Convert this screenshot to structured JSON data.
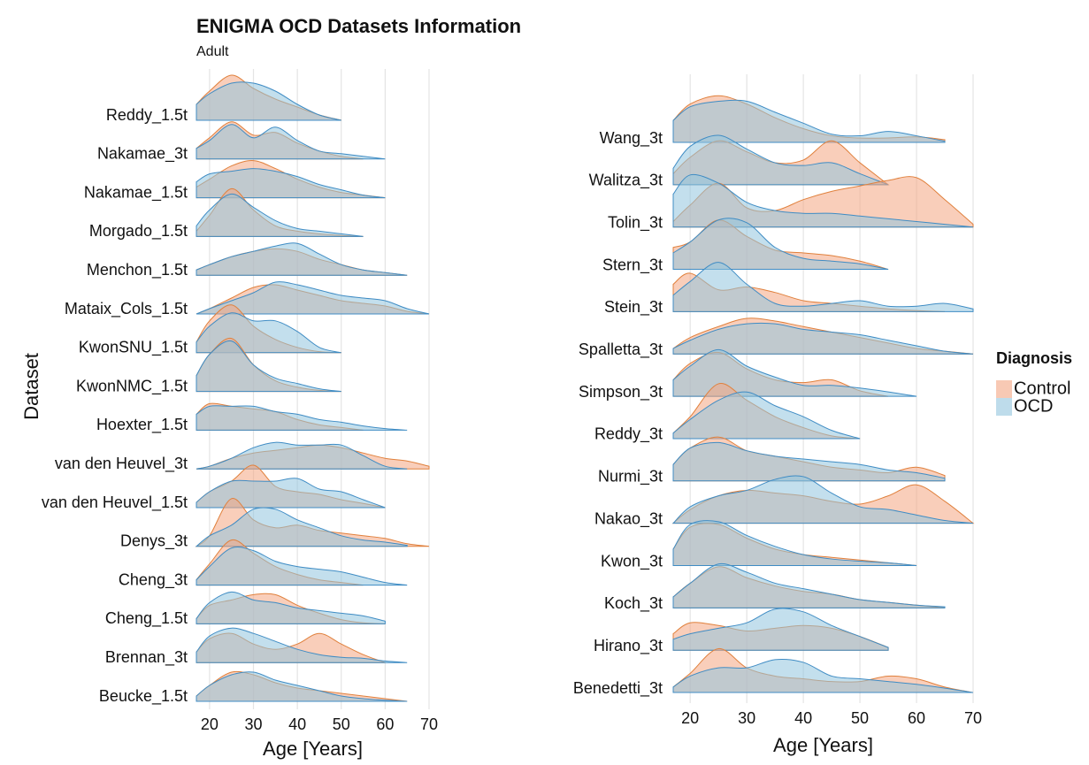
{
  "chart_data": [
    {
      "type": "ridgeline",
      "title": "ENIGMA OCD Datasets Information",
      "subtitle": "Adult",
      "y_label": "Dataset",
      "x_label": "Age [Years]",
      "xlim": [
        17,
        70
      ],
      "xticks": [
        20,
        30,
        40,
        50,
        60,
        70
      ],
      "grid": true,
      "x": [
        17,
        20,
        25,
        30,
        35,
        40,
        45,
        50,
        55,
        60,
        65,
        70
      ],
      "categories": [
        "Reddy_1.5t",
        "Nakamae_3t",
        "Nakamae_1.5t",
        "Morgado_1.5t",
        "Menchon_1.5t",
        "Mataix_Cols_1.5t",
        "KwonSNU_1.5t",
        "KwonNMC_1.5t",
        "Hoexter_1.5t",
        "van den Heuvel_3t",
        "van den Heuvel_1.5t",
        "Denys_3t",
        "Cheng_3t",
        "Cheng_1.5t",
        "Brennan_3t",
        "Beucke_1.5t"
      ],
      "series": [
        {
          "color": "#f4a582",
          "stroke": "#e0803c",
          "values": [
            [
              0.3,
              0.55,
              0.85,
              0.6,
              0.4,
              0.25,
              0.1,
              0,
              null,
              null,
              null,
              null
            ],
            [
              0.2,
              0.4,
              0.7,
              0.45,
              0.5,
              0.3,
              0.15,
              0.05,
              0,
              null,
              null,
              null
            ],
            [
              0.2,
              0.35,
              0.6,
              0.7,
              0.55,
              0.35,
              0.2,
              0.1,
              0.05,
              0,
              null,
              null
            ],
            [
              0.1,
              0.4,
              0.9,
              0.5,
              0.2,
              0.1,
              0.05,
              0.02,
              0,
              null,
              null,
              null
            ],
            [
              0.1,
              0.2,
              0.35,
              0.45,
              0.5,
              0.45,
              0.3,
              0.2,
              0.1,
              0.05,
              0,
              null
            ],
            [
              0,
              0.1,
              0.3,
              0.5,
              0.55,
              0.45,
              0.35,
              0.25,
              0.2,
              0.15,
              0.05,
              0
            ],
            [
              0.2,
              0.6,
              0.9,
              0.5,
              0.25,
              0.1,
              0.02,
              0,
              null,
              null,
              null,
              null
            ],
            [
              0.3,
              0.7,
              1,
              0.5,
              0.2,
              0.08,
              0.02,
              0,
              null,
              null,
              null,
              null
            ],
            [
              0.3,
              0.5,
              0.45,
              0.4,
              0.35,
              0.2,
              0.1,
              0.05,
              0,
              null,
              null,
              null
            ],
            [
              0,
              0.05,
              0.2,
              0.3,
              0.35,
              0.4,
              0.45,
              0.4,
              0.3,
              0.2,
              0.15,
              0.05
            ],
            [
              0.1,
              0.3,
              0.5,
              0.8,
              0.4,
              0.3,
              0.25,
              0.15,
              0.08,
              0,
              null,
              null
            ],
            [
              0,
              0.2,
              0.9,
              0.5,
              0.35,
              0.4,
              0.3,
              0.25,
              0.2,
              0.15,
              0.05,
              0
            ],
            [
              0.1,
              0.4,
              0.85,
              0.6,
              0.35,
              0.2,
              0.1,
              0.05,
              0,
              null,
              null,
              null
            ],
            [
              0.1,
              0.35,
              0.45,
              0.55,
              0.55,
              0.35,
              0.2,
              0.08,
              0.02,
              0,
              null,
              null
            ],
            [
              0.2,
              0.45,
              0.55,
              0.35,
              0.25,
              0.35,
              0.55,
              0.35,
              0.15,
              0,
              null,
              null
            ],
            [
              0.1,
              0.3,
              0.55,
              0.5,
              0.35,
              0.25,
              0.2,
              0.15,
              0.1,
              0.05,
              0,
              null
            ]
          ]
        },
        {
          "color": "#92c5de",
          "stroke": "#3f8cc4",
          "values": [
            [
              0.3,
              0.5,
              0.7,
              0.7,
              0.55,
              0.3,
              0.1,
              0,
              null,
              null,
              null,
              null
            ],
            [
              0.2,
              0.35,
              0.65,
              0.4,
              0.6,
              0.35,
              0.15,
              0.1,
              0.05,
              0,
              null,
              null
            ],
            [
              0.3,
              0.45,
              0.5,
              0.55,
              0.5,
              0.4,
              0.25,
              0.15,
              0.05,
              0,
              null,
              null
            ],
            [
              0.2,
              0.5,
              0.8,
              0.55,
              0.3,
              0.15,
              0.1,
              0.05,
              0,
              null,
              null,
              null
            ],
            [
              0.1,
              0.2,
              0.35,
              0.45,
              0.55,
              0.6,
              0.4,
              0.2,
              0.1,
              0.05,
              0,
              null
            ],
            [
              0,
              0.1,
              0.25,
              0.4,
              0.6,
              0.55,
              0.45,
              0.35,
              0.3,
              0.25,
              0.1,
              0
            ],
            [
              0.2,
              0.5,
              0.75,
              0.6,
              0.6,
              0.4,
              0.1,
              0,
              null,
              null,
              null,
              null
            ],
            [
              0.3,
              0.7,
              0.95,
              0.5,
              0.25,
              0.15,
              0.05,
              0,
              null,
              null,
              null,
              null
            ],
            [
              0.3,
              0.45,
              0.45,
              0.45,
              0.35,
              0.3,
              0.2,
              0.15,
              0.08,
              0.03,
              0,
              null
            ],
            [
              0,
              0.05,
              0.2,
              0.4,
              0.5,
              0.45,
              0.45,
              0.45,
              0.25,
              0.05,
              0,
              null
            ],
            [
              0.1,
              0.3,
              0.5,
              0.5,
              0.5,
              0.55,
              0.35,
              0.3,
              0.15,
              0,
              null,
              null
            ],
            [
              0,
              0.2,
              0.4,
              0.7,
              0.7,
              0.5,
              0.35,
              0.2,
              0.12,
              0.08,
              0.02,
              null
            ],
            [
              0.1,
              0.35,
              0.7,
              0.65,
              0.45,
              0.35,
              0.3,
              0.25,
              0.15,
              0.05,
              0,
              null
            ],
            [
              0.1,
              0.4,
              0.6,
              0.45,
              0.4,
              0.3,
              0.25,
              0.2,
              0.15,
              0.05,
              null,
              null
            ],
            [
              0.2,
              0.5,
              0.65,
              0.55,
              0.4,
              0.25,
              0.15,
              0.1,
              0.08,
              0.03,
              0,
              null
            ],
            [
              0.1,
              0.3,
              0.5,
              0.55,
              0.4,
              0.3,
              0.2,
              0.1,
              0.05,
              0.02,
              0,
              null
            ]
          ]
        }
      ]
    },
    {
      "type": "ridgeline",
      "x_label": "Age [Years]",
      "xlim": [
        17,
        70
      ],
      "xticks": [
        20,
        30,
        40,
        50,
        60,
        70
      ],
      "grid": true,
      "x": [
        17,
        20,
        25,
        30,
        35,
        40,
        45,
        50,
        55,
        60,
        65,
        70
      ],
      "legend_title": "Diagnosis",
      "legend": "right",
      "categories": [
        "Wang_3t",
        "Walitza_3t",
        "Tolin_3t",
        "Stern_3t",
        "Stein_3t",
        "Spalletta_3t",
        "Simpson_3t",
        "Reddy_3t",
        "Nurmi_3t",
        "Nakao_3t",
        "Kwon_3t",
        "Koch_3t",
        "Hirano_3t",
        "Benedetti_3t"
      ],
      "series": [
        {
          "name": "Control",
          "color": "#f4a582",
          "stroke": "#e0803c",
          "values": [
            [
              0.4,
              0.7,
              0.85,
              0.7,
              0.45,
              0.25,
              0.12,
              0.08,
              0.08,
              0.1,
              0.05,
              null
            ],
            [
              0.2,
              0.5,
              0.8,
              0.6,
              0.4,
              0.45,
              0.8,
              0.4,
              0,
              null,
              null,
              null
            ],
            [
              0.1,
              0.4,
              0.8,
              0.35,
              0.3,
              0.5,
              0.65,
              0.75,
              0.85,
              0.9,
              0.5,
              0.05
            ],
            [
              0.4,
              0.5,
              0.9,
              0.6,
              0.35,
              0.3,
              0.25,
              0.15,
              0,
              null,
              null,
              null
            ],
            [
              0.5,
              0.7,
              0.4,
              0.45,
              0.35,
              0.2,
              0.15,
              0.1,
              0.05,
              0.02,
              0,
              null
            ],
            [
              0.1,
              0.3,
              0.5,
              0.65,
              0.6,
              0.5,
              0.4,
              0.3,
              0.2,
              0.1,
              0.05,
              0
            ],
            [
              0.3,
              0.6,
              0.8,
              0.5,
              0.3,
              0.25,
              0.3,
              0.1,
              0,
              null,
              null,
              null
            ],
            [
              0.1,
              0.4,
              1,
              0.7,
              0.4,
              0.2,
              0.05,
              0,
              null,
              null,
              null,
              null
            ],
            [
              0.3,
              0.6,
              0.8,
              0.55,
              0.45,
              0.35,
              0.25,
              0.2,
              0.15,
              0.25,
              0.1,
              null
            ],
            [
              0,
              0.25,
              0.5,
              0.6,
              0.55,
              0.5,
              0.4,
              0.35,
              0.5,
              0.7,
              0.4,
              0
            ],
            [
              0.3,
              0.7,
              0.75,
              0.5,
              0.3,
              0.2,
              0.15,
              0.1,
              0.05,
              0,
              null,
              null
            ],
            [
              0.2,
              0.45,
              0.75,
              0.55,
              0.4,
              0.3,
              0.25,
              0.15,
              0.1,
              0.05,
              0,
              null
            ],
            [
              0.3,
              0.5,
              0.45,
              0.35,
              0.4,
              0.45,
              0.4,
              0.25,
              0.05,
              null,
              null,
              null
            ],
            [
              0.1,
              0.35,
              0.8,
              0.45,
              0.3,
              0.25,
              0.2,
              0.2,
              0.3,
              0.25,
              0.1,
              0
            ]
          ]
        },
        {
          "name": "OCD",
          "color": "#92c5de",
          "stroke": "#3f8cc4",
          "values": [
            [
              0.4,
              0.65,
              0.75,
              0.75,
              0.55,
              0.35,
              0.15,
              0.12,
              0.2,
              0.12,
              0.02,
              null
            ],
            [
              0.3,
              0.7,
              0.9,
              0.65,
              0.4,
              0.35,
              0.4,
              0.2,
              0,
              null,
              null,
              null
            ],
            [
              0.6,
              0.95,
              0.8,
              0.45,
              0.3,
              0.25,
              0.25,
              0.2,
              0.15,
              0.1,
              0.05,
              0
            ],
            [
              0.3,
              0.5,
              0.9,
              0.85,
              0.4,
              0.2,
              0.15,
              0.1,
              0,
              null,
              null,
              null
            ],
            [
              0.3,
              0.55,
              0.9,
              0.5,
              0.15,
              0.1,
              0.15,
              0.2,
              0.1,
              0.1,
              0.15,
              0.05
            ],
            [
              0.1,
              0.25,
              0.45,
              0.55,
              0.55,
              0.45,
              0.4,
              0.35,
              0.25,
              0.15,
              0.05,
              0
            ],
            [
              0.3,
              0.55,
              0.85,
              0.55,
              0.35,
              0.2,
              0.2,
              0.15,
              0.08,
              0,
              null,
              null
            ],
            [
              0.1,
              0.35,
              0.7,
              0.85,
              0.6,
              0.4,
              0.15,
              0,
              null,
              null,
              null,
              null
            ],
            [
              0.3,
              0.6,
              0.7,
              0.55,
              0.45,
              0.4,
              0.35,
              0.3,
              0.2,
              0.15,
              0.05,
              null
            ],
            [
              0,
              0.3,
              0.5,
              0.6,
              0.8,
              0.85,
              0.55,
              0.3,
              0.25,
              0.15,
              0.05,
              0
            ],
            [
              0.3,
              0.75,
              0.8,
              0.55,
              0.35,
              0.2,
              0.12,
              0.08,
              0.05,
              0,
              null,
              null
            ],
            [
              0.2,
              0.45,
              0.8,
              0.65,
              0.45,
              0.35,
              0.25,
              0.15,
              0.1,
              0.05,
              0.02,
              null
            ],
            [
              0.2,
              0.3,
              0.4,
              0.5,
              0.75,
              0.7,
              0.45,
              0.25,
              0.05,
              null,
              null,
              null
            ],
            [
              0.1,
              0.3,
              0.45,
              0.45,
              0.6,
              0.55,
              0.3,
              0.25,
              0.2,
              0.15,
              0.08,
              0
            ]
          ]
        }
      ]
    }
  ]
}
